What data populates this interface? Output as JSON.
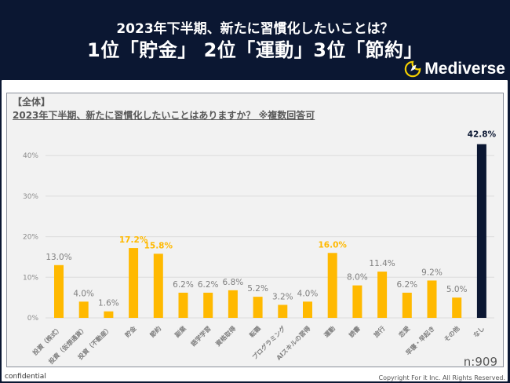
{
  "header": {
    "title_line1": "2023年下半期、新たに習慣化したいことは？",
    "title_line2": "1位「貯金」 2位「運動」3位「節約」",
    "logo_text": "Mediverse",
    "logo_icon": "rocket-moon-icon"
  },
  "panel": {
    "section": "【全体】",
    "question": "2023年下半期、新たに習慣化したいことはありますか？ ※複数回答可",
    "sample": "n:909"
  },
  "footer": {
    "confidential": "confidential",
    "copyright": "Copyright For it Inc. All Rights Reserved."
  },
  "colors": {
    "background": "#0b1732",
    "bar_default": "#ffb900",
    "bar_none": "#0b1732",
    "highlight_label": "#ffb900",
    "panel": "#f2f2f2"
  },
  "chart_data": {
    "type": "bar",
    "title": "2023年下半期、新たに習慣化したいことはありますか？ ※複数回答可",
    "xlabel": "",
    "ylabel": "",
    "ylim": [
      0,
      45
    ],
    "yticks": [
      0,
      10,
      20,
      30,
      40
    ],
    "ytick_labels": [
      "0%",
      "10%",
      "20%",
      "30%",
      "40%"
    ],
    "grid": true,
    "legend": "none",
    "categories": [
      "投資（株式）",
      "投資（仮想通貨）",
      "投資（不動産）",
      "貯金",
      "節約",
      "副業",
      "語学学習",
      "資格取得",
      "転職",
      "プログラミング",
      "AIスキルの習得",
      "運動",
      "読書",
      "旅行",
      "恋愛",
      "早寝・早起き",
      "その他",
      "なし"
    ],
    "values": [
      13.0,
      4.0,
      1.6,
      17.2,
      15.8,
      6.2,
      6.2,
      6.8,
      5.2,
      3.2,
      4.0,
      16.0,
      8.0,
      11.4,
      6.2,
      9.2,
      5.0,
      42.8
    ],
    "value_labels": [
      "13.0%",
      "4.0%",
      "1.6%",
      "17.2%",
      "15.8%",
      "6.2%",
      "6.2%",
      "6.8%",
      "5.2%",
      "3.2%",
      "4.0%",
      "16.0%",
      "8.0%",
      "11.4%",
      "6.2%",
      "9.2%",
      "5.0%",
      "42.8%"
    ],
    "highlighted": [
      "貯金",
      "節約",
      "運動"
    ],
    "dark_bar": "なし"
  }
}
